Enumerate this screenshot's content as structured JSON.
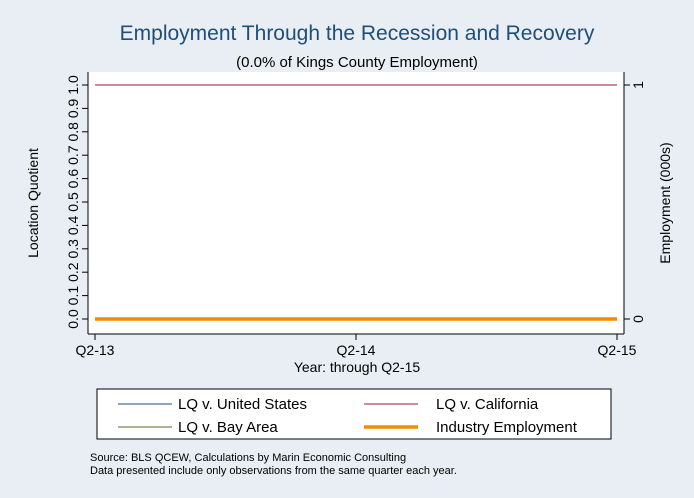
{
  "chart_data": {
    "type": "line",
    "title": "Employment Through the Recession and Recovery",
    "subtitle": "(0.0% of Kings County Employment)",
    "xlabel": "Year: through Q2-15",
    "ylabel": "Location Quotient",
    "y2label": "Employment (000s)",
    "x_ticks": [
      "Q2-13",
      "Q2-14",
      "Q2-15"
    ],
    "y_ticks": [
      "0.0",
      "0.1",
      "0.2",
      "0.3",
      "0.4",
      "0.5",
      "0.6",
      "0.7",
      "0.8",
      "0.9",
      "1.0"
    ],
    "y_tick_values": [
      0,
      0.1,
      0.2,
      0.3,
      0.4,
      0.5,
      0.6,
      0.7,
      0.8,
      0.9,
      1.0
    ],
    "y2_ticks": [
      "0",
      "1"
    ],
    "y2_tick_values": [
      0,
      1
    ],
    "ylim": [
      0,
      1
    ],
    "y2lim": [
      0,
      1
    ],
    "grid": false,
    "legend_position": "bottom",
    "series": [
      {
        "name": "LQ v. United States",
        "axis": "left",
        "color": "#1f4e79",
        "width": 1,
        "x": [
          "Q2-13",
          "Q2-14",
          "Q2-15"
        ],
        "values": [
          0,
          0,
          0
        ]
      },
      {
        "name": "LQ v. California",
        "axis": "left",
        "color": "#a3143c",
        "width": 1,
        "x": [
          "Q2-13",
          "Q2-14",
          "Q2-15"
        ],
        "values": [
          1,
          1,
          1
        ]
      },
      {
        "name": "LQ v. Bay Area",
        "axis": "left",
        "color": "#4f6b2a",
        "width": 1,
        "x": [
          "Q2-13",
          "Q2-14",
          "Q2-15"
        ],
        "values": [
          0,
          0,
          0
        ]
      },
      {
        "name": "Industry Employment",
        "axis": "right",
        "color": "#f28c00",
        "width": 3.5,
        "x": [
          "Q2-13",
          "Q2-14",
          "Q2-15"
        ],
        "values": [
          0,
          0,
          0
        ]
      }
    ],
    "colors": {
      "background": "#e8eef3",
      "plot_background": "#ffffff",
      "title": "#1f4e79",
      "text": "#000000"
    }
  },
  "notes": {
    "source": "Source: BLS QCEW, Calculations by Marin Economic Consulting",
    "data_note": "Data presented include only observations from the same quarter each year."
  }
}
